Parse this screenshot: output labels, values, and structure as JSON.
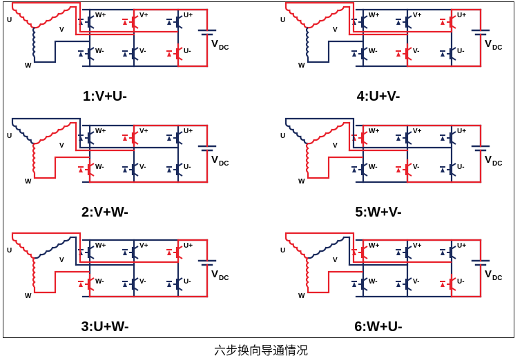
{
  "caption": "六步换向导通情况",
  "colors": {
    "on": "#e8202a",
    "off": "#1a2a5c",
    "text": "#000000"
  },
  "labels": {
    "coil_u": "U",
    "coil_v": "V",
    "coil_w": "W",
    "sw_up": "W+",
    "sw_vp": "V+",
    "sw_wp_alt": "U+",
    "sw_wm": "W-",
    "sw_vm": "V-",
    "sw_um": "U-",
    "vdc": "V",
    "vdc_sub": "DC"
  },
  "panels": [
    {
      "id": "step-1",
      "title": "1:V+U-",
      "on_switches": [
        "V+",
        "U-"
      ],
      "on_coils": [
        "U",
        "V"
      ]
    },
    {
      "id": "step-2",
      "title": "2:V+W-",
      "on_switches": [
        "V+",
        "W-"
      ],
      "on_coils": [
        "V",
        "W"
      ]
    },
    {
      "id": "step-3",
      "title": "3:U+W-",
      "on_switches": [
        "U+",
        "W-"
      ],
      "on_coils": [
        "U",
        "W"
      ]
    },
    {
      "id": "step-4",
      "title": "4:U+V-",
      "on_switches": [
        "U+",
        "V-"
      ],
      "on_coils": [
        "U",
        "V"
      ]
    },
    {
      "id": "step-5",
      "title": "5:W+V-",
      "on_switches": [
        "W+",
        "V-"
      ],
      "on_coils": [
        "V",
        "W"
      ]
    },
    {
      "id": "step-6",
      "title": "6:W+U-",
      "on_switches": [
        "W+",
        "U-"
      ],
      "on_coils": [
        "U",
        "W"
      ]
    }
  ]
}
